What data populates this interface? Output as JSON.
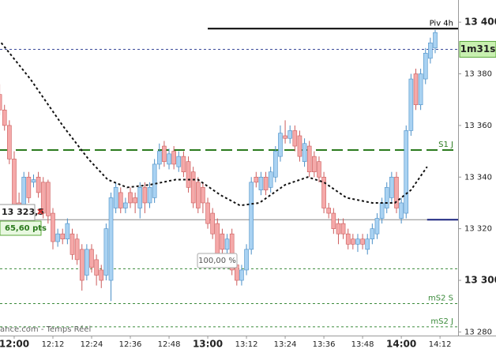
{
  "chart_data": {
    "type": "candlestick",
    "x": [
      715.5,
      717,
      718.5,
      720,
      721.5,
      723,
      724.5,
      726,
      727.5,
      729,
      730.5,
      732,
      733.5,
      735,
      736.5,
      738,
      739.5,
      741,
      742.5,
      744,
      745.5,
      747,
      748.5,
      750,
      751.5,
      753,
      754.5,
      756,
      757.5,
      759,
      760.5,
      762,
      763.5,
      765,
      766.5,
      768,
      769.5,
      771,
      772.5,
      774,
      775.5,
      777,
      778.5,
      780,
      781.5,
      783,
      784.5,
      786,
      787.5,
      789,
      790.5,
      792,
      793.5,
      795,
      796.5,
      798,
      799.5,
      801,
      802.5,
      804,
      805.5,
      807,
      808.5,
      810,
      811.5,
      813,
      814.5,
      816,
      817.5,
      819,
      820.5,
      822,
      823.5,
      825,
      826.5,
      828,
      829.5,
      831,
      832.5,
      834,
      835.5,
      837,
      838.5,
      840,
      841.5,
      843,
      844.5,
      846,
      847.5,
      849,
      850.5
    ],
    "open": [
      13372,
      13366,
      13360,
      13347,
      13330,
      13326,
      13340,
      13338,
      13340,
      13338,
      13338,
      13326,
      13315,
      13318,
      13316,
      13318,
      13316,
      13312,
      13302,
      13312,
      13308,
      13304,
      13302,
      13300,
      13328,
      13334,
      13328,
      13334,
      13332,
      13328,
      13336,
      13330,
      13332,
      13345,
      13352,
      13345,
      13350,
      13344,
      13348,
      13346,
      13342,
      13338,
      13336,
      13330,
      13326,
      13322,
      13318,
      13312,
      13318,
      13306,
      13300,
      13304,
      13312,
      13340,
      13335,
      13340,
      13336,
      13340,
      13348,
      13356,
      13355,
      13358,
      13356,
      13346,
      13352,
      13348,
      13346,
      13340,
      13328,
      13326,
      13322,
      13322,
      13318,
      13316,
      13314,
      13316,
      13312,
      13316,
      13318,
      13324,
      13328,
      13332,
      13340,
      13324,
      13326,
      13358,
      13380,
      13368,
      13378,
      13386,
      13390
    ],
    "high": [
      13376,
      13368,
      13362,
      13350,
      13334,
      13342,
      13342,
      13341,
      13342,
      13340,
      13339,
      13328,
      13320,
      13320,
      13324,
      13320,
      13318,
      13314,
      13314,
      13314,
      13310,
      13306,
      13322,
      13334,
      13338,
      13336,
      13332,
      13336,
      13334,
      13338,
      13338,
      13338,
      13347,
      13353,
      13354,
      13351,
      13352,
      13350,
      13350,
      13348,
      13344,
      13340,
      13338,
      13332,
      13328,
      13324,
      13320,
      13318,
      13320,
      13308,
      13306,
      13314,
      13340,
      13342,
      13342,
      13342,
      13344,
      13352,
      13360,
      13362,
      13360,
      13360,
      13358,
      13355,
      13354,
      13350,
      13348,
      13342,
      13330,
      13328,
      13324,
      13324,
      13320,
      13318,
      13318,
      13318,
      13318,
      13322,
      13326,
      13332,
      13338,
      13342,
      13342,
      13332,
      13360,
      13380,
      13382,
      13382,
      13390,
      13394,
      13397
    ],
    "low": [
      13364,
      13358,
      13345,
      13325,
      13320,
      13322,
      13330,
      13336,
      13332,
      13324,
      13322,
      13312,
      13313,
      13314,
      13314,
      13308,
      13306,
      13296,
      13300,
      13303,
      13298,
      13297,
      13300,
      13292,
      13326,
      13326,
      13326,
      13328,
      13326,
      13324,
      13326,
      13328,
      13330,
      13343,
      13344,
      13343,
      13343,
      13342,
      13340,
      13334,
      13328,
      13326,
      13326,
      13320,
      13316,
      13308,
      13310,
      13310,
      13302,
      13298,
      13298,
      13302,
      13310,
      13336,
      13333,
      13333,
      13334,
      13338,
      13346,
      13353,
      13353,
      13350,
      13346,
      13344,
      13340,
      13340,
      13338,
      13326,
      13324,
      13318,
      13314,
      13316,
      13312,
      13312,
      13311,
      13312,
      13310,
      13314,
      13316,
      13322,
      13326,
      13330,
      13326,
      13322,
      13324,
      13356,
      13366,
      13366,
      13376,
      13384,
      13388
    ],
    "close": [
      13366,
      13360,
      13347,
      13328,
      13324,
      13340,
      13332,
      13339,
      13334,
      13326,
      13325,
      13315,
      13318,
      13316,
      13322,
      13310,
      13308,
      13300,
      13312,
      13305,
      13302,
      13300,
      13320,
      13332,
      13336,
      13328,
      13330,
      13330,
      13330,
      13336,
      13330,
      13336,
      13345,
      13350,
      13346,
      13349,
      13345,
      13348,
      13342,
      13336,
      13330,
      13328,
      13330,
      13322,
      13318,
      13310,
      13312,
      13316,
      13304,
      13300,
      13304,
      13312,
      13338,
      13338,
      13340,
      13335,
      13342,
      13350,
      13357,
      13355,
      13358,
      13352,
      13348,
      13353,
      13342,
      13342,
      13340,
      13328,
      13326,
      13320,
      13318,
      13318,
      13314,
      13314,
      13316,
      13314,
      13316,
      13320,
      13324,
      13330,
      13336,
      13340,
      13328,
      13330,
      13358,
      13378,
      13368,
      13380,
      13388,
      13392,
      13396
    ],
    "up_color": "#a9d2f2",
    "up_edge": "#4a8fc7",
    "down_color": "#f5a9a9",
    "down_edge": "#cc5c5c",
    "moving_average": {
      "x": [
        716,
        725,
        735,
        743,
        749,
        755,
        762,
        770,
        777,
        784,
        790,
        796,
        804,
        811,
        816,
        823,
        831,
        838,
        843,
        848
      ],
      "values": [
        13392,
        13378,
        13360,
        13347,
        13339,
        13336,
        13337,
        13339,
        13339,
        13333,
        13329,
        13330,
        13337,
        13340,
        13338,
        13332,
        13330,
        13330,
        13335,
        13344
      ],
      "color": "#111111"
    },
    "levels": [
      {
        "value": 13397.5,
        "label": "Piv 4h",
        "color": "#000000",
        "style": "solid",
        "x_start": 780
      },
      {
        "value": 13389.5,
        "axis_tag": "1m31s",
        "color": "#3a4a9a",
        "style": "dotted"
      },
      {
        "value": 13350.5,
        "label": "S1 J",
        "color": "#2b7a1e",
        "style": "dashed"
      },
      {
        "value": 13323.5,
        "color": "#888888",
        "style": "solid"
      },
      {
        "value": 13323.5,
        "color": "#1a237e",
        "style": "solid",
        "x_start": 848
      },
      {
        "value": 13304.5,
        "color": "#3a8a3a",
        "style": "dotted"
      },
      {
        "value": 13291,
        "label": "mS2 S",
        "color": "#3a8a3a",
        "style": "dotted"
      },
      {
        "value": 13282,
        "label": "mS2 J",
        "color": "#3a8a3a",
        "style": "dotted"
      }
    ],
    "annotations": {
      "position_price": "13 323,5",
      "position_pts": "65,60 pts",
      "ratio": "100,00 %",
      "watermark": "ance.com - Temps Réel"
    },
    "xlim": [
      715.6,
      857.6
    ],
    "xticks": [
      {
        "value": 720,
        "label": "12:00"
      },
      {
        "value": 732,
        "label": "12:12"
      },
      {
        "value": 744,
        "label": "12:24"
      },
      {
        "value": 756,
        "label": "12:36"
      },
      {
        "value": 768,
        "label": "12:48"
      },
      {
        "value": 780,
        "label": "13:00"
      },
      {
        "value": 792,
        "label": "13:12"
      },
      {
        "value": 804,
        "label": "13:24"
      },
      {
        "value": 816,
        "label": "13:36"
      },
      {
        "value": 828,
        "label": "13:48"
      },
      {
        "value": 840,
        "label": "14:00"
      },
      {
        "value": 852,
        "label": "14:12"
      }
    ],
    "ylim": [
      13278.6,
      13408.6
    ],
    "yticks": [
      {
        "value": 13280,
        "label": "13 280"
      },
      {
        "value": 13300,
        "label": "13 300"
      },
      {
        "value": 13320,
        "label": "13 320"
      },
      {
        "value": 13340,
        "label": "13 340"
      },
      {
        "value": 13360,
        "label": "13 360"
      },
      {
        "value": 13380,
        "label": "13 380"
      },
      {
        "value": 13400,
        "label": "13 400"
      }
    ]
  }
}
